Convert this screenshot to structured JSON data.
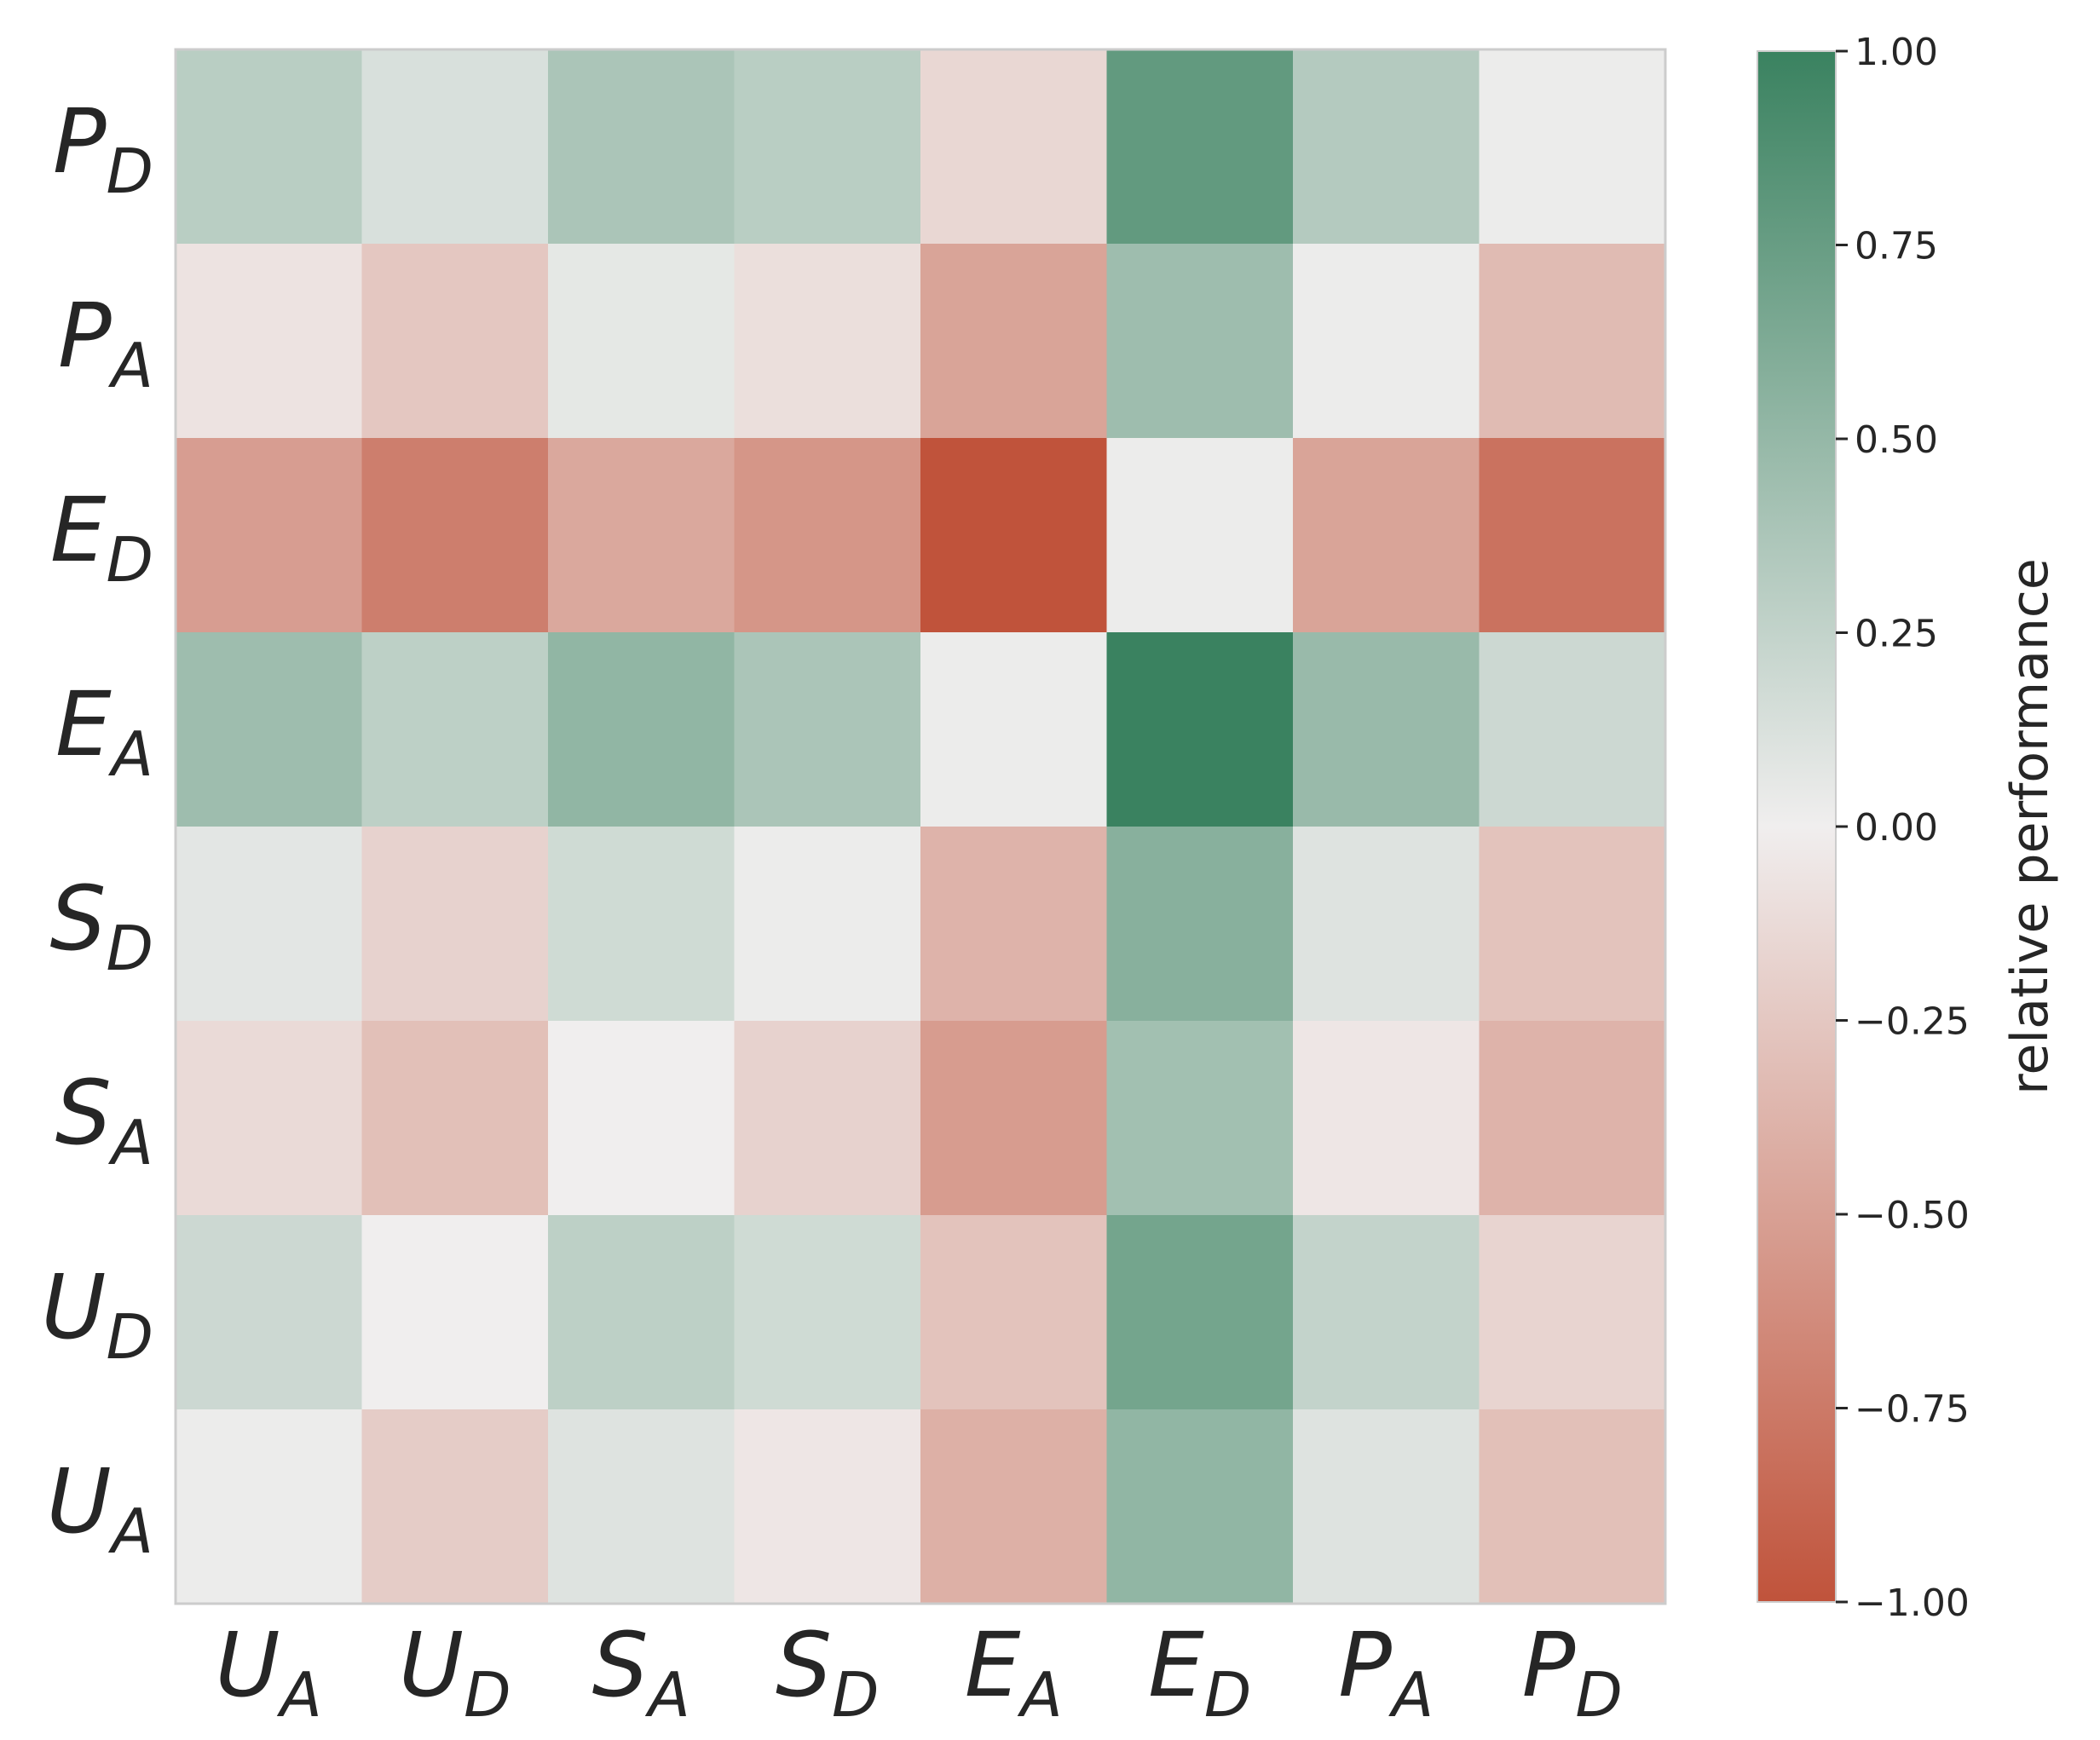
{
  "chart_data": {
    "type": "heatmap",
    "x_labels": [
      {
        "base": "U",
        "sub": "A"
      },
      {
        "base": "U",
        "sub": "D"
      },
      {
        "base": "S",
        "sub": "A"
      },
      {
        "base": "S",
        "sub": "D"
      },
      {
        "base": "E",
        "sub": "A"
      },
      {
        "base": "E",
        "sub": "D"
      },
      {
        "base": "P",
        "sub": "A"
      },
      {
        "base": "P",
        "sub": "D"
      }
    ],
    "y_labels": [
      {
        "base": "P",
        "sub": "D"
      },
      {
        "base": "P",
        "sub": "A"
      },
      {
        "base": "E",
        "sub": "D"
      },
      {
        "base": "E",
        "sub": "A"
      },
      {
        "base": "S",
        "sub": "D"
      },
      {
        "base": "S",
        "sub": "A"
      },
      {
        "base": "U",
        "sub": "D"
      },
      {
        "base": "U",
        "sub": "A"
      }
    ],
    "values": [
      [
        0.3,
        0.13,
        0.38,
        0.3,
        -0.15,
        0.78,
        0.33,
        0.02
      ],
      [
        -0.07,
        -0.25,
        0.06,
        -0.1,
        -0.48,
        0.45,
        0.02,
        -0.33
      ],
      [
        -0.52,
        -0.72,
        -0.45,
        -0.57,
        -1.0,
        0.02,
        -0.48,
        -0.8
      ],
      [
        0.45,
        0.28,
        0.52,
        0.38,
        0.02,
        1.0,
        0.48,
        0.2
      ],
      [
        0.07,
        -0.18,
        0.18,
        0.02,
        -0.38,
        0.57,
        0.1,
        -0.28
      ],
      [
        -0.13,
        -0.3,
        0.0,
        -0.18,
        -0.53,
        0.43,
        -0.05,
        -0.38
      ],
      [
        0.2,
        0.0,
        0.28,
        0.18,
        -0.28,
        0.68,
        0.25,
        -0.17
      ],
      [
        0.02,
        -0.22,
        0.1,
        -0.05,
        -0.4,
        0.52,
        0.1,
        -0.3
      ]
    ],
    "colorbar": {
      "label": "relative performance",
      "range": [
        -1.0,
        1.0
      ],
      "ticks": [
        "1.00",
        "0.75",
        "0.50",
        "0.25",
        "0.00",
        "−0.25",
        "−0.50",
        "−0.75",
        "−1.00"
      ],
      "tick_values": [
        1.0,
        0.75,
        0.5,
        0.25,
        0.0,
        -0.25,
        -0.5,
        -0.75,
        -1.0
      ],
      "colors": {
        "min": "#c0533b",
        "mid": "#f0eeee",
        "max": "#3a8260"
      }
    },
    "grid": false,
    "frame_color": "#cccccc"
  }
}
